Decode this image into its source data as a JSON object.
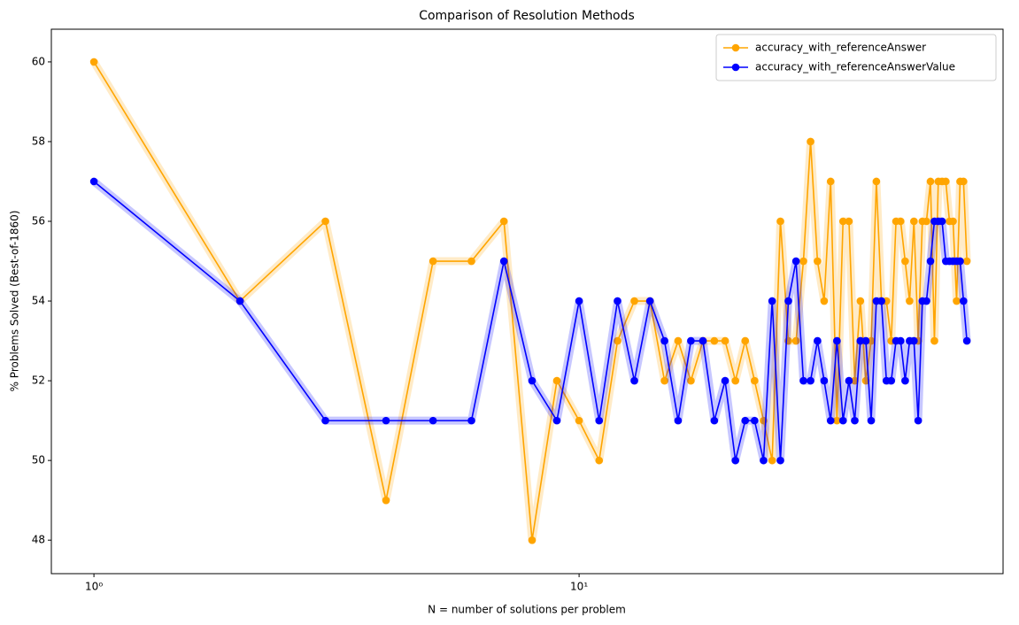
{
  "chart_data": {
    "type": "line",
    "title": "Comparison of Resolution Methods",
    "xlabel": "N = number of solutions per problem",
    "ylabel": "% Problems Solved (Best-of-1860)",
    "x": [
      1,
      2,
      3,
      4,
      5,
      6,
      7,
      8,
      9,
      10,
      11,
      12,
      13,
      14,
      15,
      16,
      17,
      18,
      19,
      20,
      21,
      22,
      23,
      24,
      25,
      26,
      27,
      28,
      29,
      30,
      31,
      32,
      33,
      34,
      35,
      36,
      37,
      38,
      39,
      40,
      41,
      42,
      43,
      44,
      45,
      46,
      47,
      48,
      49,
      50,
      51,
      52,
      53,
      54,
      55,
      56,
      57,
      58,
      59,
      60,
      61,
      62,
      63
    ],
    "series": [
      {
        "name": "accuracy_with_referenceAnswer",
        "color": "#ffa500",
        "values": [
          60,
          54,
          56,
          49,
          55,
          55,
          56,
          48,
          52,
          51,
          50,
          53,
          54,
          54,
          52,
          53,
          52,
          53,
          53,
          53,
          52,
          53,
          52,
          51,
          50,
          56,
          53,
          53,
          55,
          58,
          55,
          54,
          57,
          51,
          56,
          56,
          52,
          54,
          52,
          53,
          57,
          54,
          54,
          53,
          56,
          56,
          55,
          54,
          56,
          53,
          56,
          56,
          57,
          53,
          57,
          57,
          57,
          56,
          56,
          54,
          57,
          57,
          55
        ]
      },
      {
        "name": "accuracy_with_referenceAnswerValue",
        "color": "#0000ff",
        "values": [
          57,
          54,
          51,
          51,
          51,
          51,
          55,
          52,
          51,
          54,
          51,
          54,
          52,
          54,
          53,
          51,
          53,
          53,
          51,
          52,
          50,
          51,
          51,
          50,
          54,
          50,
          54,
          55,
          52,
          52,
          53,
          52,
          51,
          53,
          51,
          52,
          51,
          53,
          53,
          51,
          54,
          54,
          52,
          52,
          53,
          53,
          52,
          53,
          53,
          51,
          54,
          54,
          55,
          56,
          56,
          56,
          55,
          55,
          55,
          55,
          55,
          54,
          53
        ]
      }
    ],
    "xscale": "log",
    "xlim": [
      0.817,
      74.8
    ],
    "xticks": [
      {
        "value": 1,
        "label": "10⁰"
      },
      {
        "value": 10,
        "label": "10¹"
      }
    ],
    "ylim": [
      47.16,
      60.82
    ],
    "yticks": [
      48,
      50,
      52,
      54,
      56,
      58,
      60
    ],
    "legend": "upper right"
  }
}
